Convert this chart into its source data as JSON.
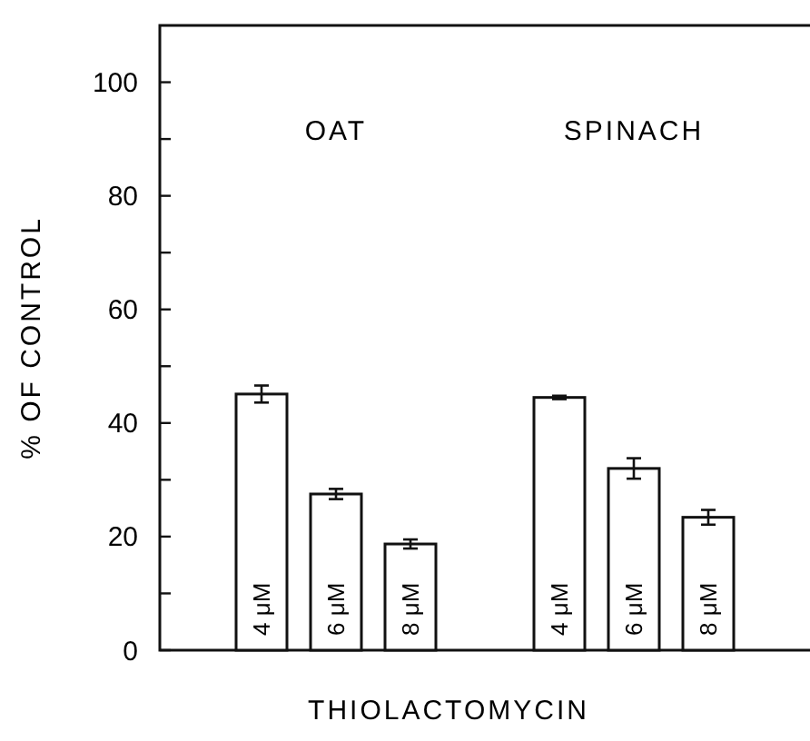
{
  "chart_data": {
    "type": "bar",
    "xlabel": "THIOLACTOMYCIN",
    "ylabel": "% OF CONTROL",
    "categories": [
      "4 μM",
      "6 μM",
      "8 μM",
      null,
      "4 μM",
      "6 μM",
      "8 μM"
    ],
    "values": [
      45.1,
      27.5,
      18.7,
      null,
      44.5,
      32,
      23.4
    ],
    "errors": [
      1.5,
      0.9,
      0.8,
      null,
      0.3,
      1.8,
      1.3
    ],
    "color": "#ffffff",
    "annotations": [
      "OAT",
      "SPINACH"
    ],
    "ylim": [
      0,
      110
    ],
    "yticks": [
      0,
      {
        "value": 10,
        "label": null
      },
      20,
      {
        "value": 30,
        "label": null
      },
      40,
      {
        "value": 50,
        "label": null
      },
      60,
      {
        "value": 70,
        "label": null
      },
      80,
      {
        "value": 90,
        "label": null
      },
      100
    ],
    "grid": false
  }
}
